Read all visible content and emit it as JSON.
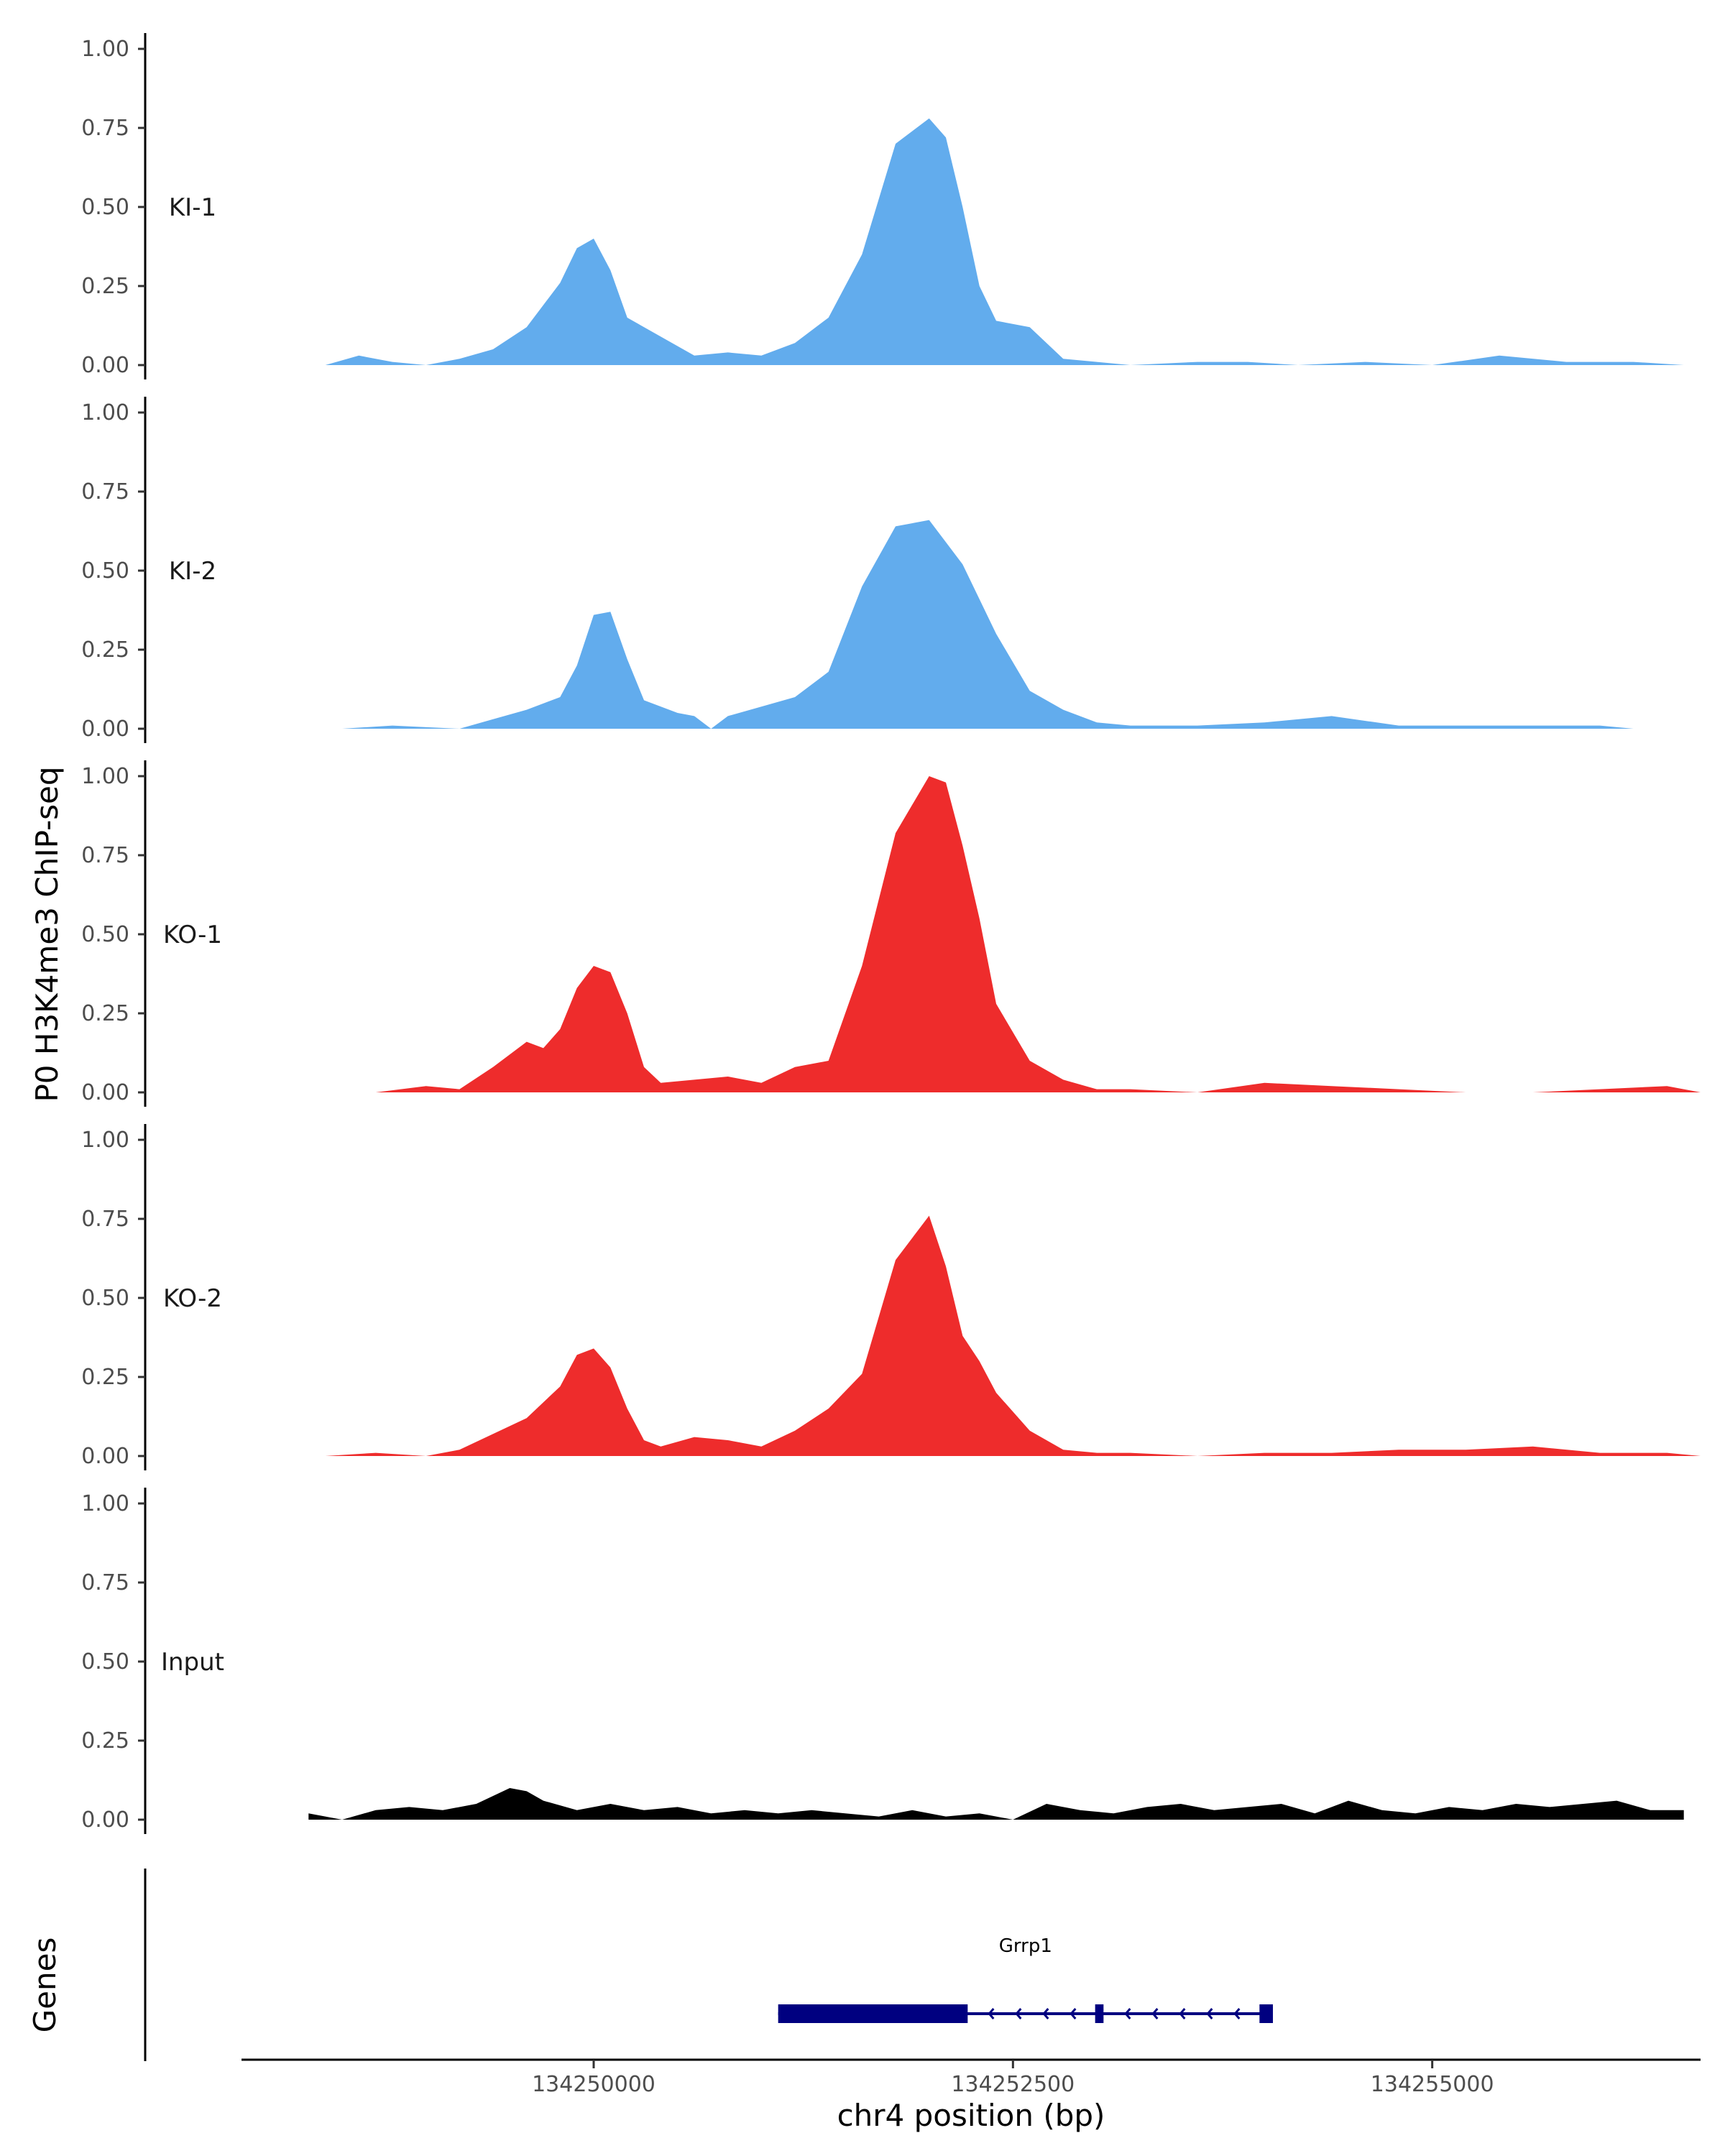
{
  "chart_data": {
    "type": "area",
    "ylabel": "P0 H3K4me3 ChIP-seq",
    "xlabel": "chr4 position (bp)",
    "genes_label": "Genes",
    "xlim": [
      134247900,
      134256600
    ],
    "x_ticks": [
      134250000,
      134252500,
      134255000
    ],
    "x_tick_labels": [
      "134250000",
      "134252500",
      "134255000"
    ],
    "ylim": [
      0,
      1
    ],
    "y_ticks": [
      0,
      0.25,
      0.5,
      0.75,
      1
    ],
    "y_tick_labels": [
      "0.00",
      "0.25",
      "0.50",
      "0.75",
      "1.00"
    ],
    "grid": false,
    "tracks": [
      {
        "name": "KI-1",
        "color": "#62aced",
        "x": [
          134248400,
          134248600,
          134248800,
          134249000,
          134249200,
          134249400,
          134249600,
          134249800,
          134249900,
          134250000,
          134250100,
          134250200,
          134250400,
          134250600,
          134250800,
          134251000,
          134251200,
          134251400,
          134251600,
          134251800,
          134252000,
          134252100,
          134252200,
          134252300,
          134252400,
          134252600,
          134252800,
          134253000,
          134253200,
          134253600,
          134253900,
          134254200,
          134254600,
          134255000,
          134255400,
          134255800,
          134256200,
          134256500
        ],
        "y": [
          0,
          0.03,
          0.01,
          0,
          0.02,
          0.05,
          0.12,
          0.26,
          0.37,
          0.4,
          0.3,
          0.15,
          0.09,
          0.03,
          0.04,
          0.03,
          0.07,
          0.15,
          0.35,
          0.7,
          0.78,
          0.72,
          0.5,
          0.25,
          0.14,
          0.12,
          0.02,
          0.01,
          0,
          0.01,
          0.01,
          0,
          0.01,
          0,
          0.03,
          0.01,
          0.01,
          0
        ]
      },
      {
        "name": "KI-2",
        "color": "#62aced",
        "x": [
          134248500,
          134248800,
          134249200,
          134249400,
          134249600,
          134249800,
          134249900,
          134250000,
          134250100,
          134250200,
          134250300,
          134250500,
          134250600,
          134250700,
          134250800,
          134251000,
          134251200,
          134251400,
          134251600,
          134251800,
          134252000,
          134252200,
          134252400,
          134252600,
          134252800,
          134253000,
          134253200,
          134253600,
          134254000,
          134254400,
          134254800,
          134255200,
          134255600,
          134256000,
          134256200
        ],
        "y": [
          0,
          0.01,
          0,
          0.03,
          0.06,
          0.1,
          0.2,
          0.36,
          0.37,
          0.22,
          0.09,
          0.05,
          0.04,
          0,
          0.04,
          0.07,
          0.1,
          0.18,
          0.45,
          0.64,
          0.66,
          0.52,
          0.3,
          0.12,
          0.06,
          0.02,
          0.01,
          0.01,
          0.02,
          0.04,
          0.01,
          0.01,
          0.01,
          0.01,
          0
        ]
      },
      {
        "name": "KO-1",
        "color": "#ee2c2c",
        "x": [
          134248700,
          134249000,
          134249200,
          134249400,
          134249600,
          134249700,
          134249800,
          134249900,
          134250000,
          134250100,
          134250200,
          134250300,
          134250400,
          134250600,
          134250800,
          134251000,
          134251200,
          134251400,
          134251600,
          134251800,
          134252000,
          134252100,
          134252200,
          134252300,
          134252400,
          134252600,
          134252800,
          134253000,
          134253200,
          134253600,
          134254000,
          134254400,
          134254800,
          134255200,
          134255600,
          134256000,
          134256400,
          134256600
        ],
        "y": [
          0,
          0.02,
          0.01,
          0.08,
          0.16,
          0.14,
          0.2,
          0.33,
          0.4,
          0.38,
          0.25,
          0.08,
          0.03,
          0.04,
          0.05,
          0.03,
          0.08,
          0.1,
          0.4,
          0.82,
          1.0,
          0.98,
          0.78,
          0.55,
          0.28,
          0.1,
          0.04,
          0.01,
          0.01,
          0,
          0.03,
          0.02,
          0.01,
          0,
          0,
          0.01,
          0.02,
          0
        ]
      },
      {
        "name": "KO-2",
        "color": "#ee2c2c",
        "x": [
          134248400,
          134248700,
          134249000,
          134249200,
          134249400,
          134249600,
          134249800,
          134249900,
          134250000,
          134250100,
          134250200,
          134250300,
          134250400,
          134250600,
          134250800,
          134251000,
          134251200,
          134251400,
          134251600,
          134251800,
          134252000,
          134252100,
          134252200,
          134252300,
          134252400,
          134252600,
          134252800,
          134253000,
          134253200,
          134253600,
          134254000,
          134254400,
          134254800,
          134255200,
          134255600,
          134256000,
          134256400,
          134256600
        ],
        "y": [
          0,
          0.01,
          0,
          0.02,
          0.07,
          0.12,
          0.22,
          0.32,
          0.34,
          0.28,
          0.15,
          0.05,
          0.03,
          0.06,
          0.05,
          0.03,
          0.08,
          0.15,
          0.26,
          0.62,
          0.76,
          0.6,
          0.38,
          0.3,
          0.2,
          0.08,
          0.02,
          0.01,
          0.01,
          0,
          0.01,
          0.01,
          0.02,
          0.02,
          0.03,
          0.01,
          0.01,
          0
        ]
      },
      {
        "name": "Input",
        "color": "#000000",
        "x": [
          134248300,
          134248500,
          134248700,
          134248900,
          134249100,
          134249300,
          134249500,
          134249600,
          134249700,
          134249900,
          134250100,
          134250300,
          134250500,
          134250700,
          134250900,
          134251100,
          134251300,
          134251500,
          134251700,
          134251900,
          134252100,
          134252300,
          134252500,
          134252700,
          134252900,
          134253100,
          134253300,
          134253500,
          134253700,
          134253900,
          134254100,
          134254300,
          134254500,
          134254700,
          134254900,
          134255100,
          134255300,
          134255500,
          134255700,
          134255900,
          134256100,
          134256300,
          134256500
        ],
        "y": [
          0.02,
          0,
          0.03,
          0.04,
          0.03,
          0.05,
          0.1,
          0.09,
          0.06,
          0.03,
          0.05,
          0.03,
          0.04,
          0.02,
          0.03,
          0.02,
          0.03,
          0.02,
          0.01,
          0.03,
          0.01,
          0.02,
          0,
          0.05,
          0.03,
          0.02,
          0.04,
          0.05,
          0.03,
          0.04,
          0.05,
          0.02,
          0.06,
          0.03,
          0.02,
          0.04,
          0.03,
          0.05,
          0.04,
          0.05,
          0.06,
          0.03,
          0.03
        ]
      }
    ],
    "gene": {
      "name": "Grrp1",
      "color": "#000080",
      "start": 134251100,
      "end": 134254050,
      "thick": [
        [
          134251100,
          134252230
        ]
      ],
      "exons": [
        [
          134252990,
          134253040
        ],
        [
          134253970,
          134254050
        ]
      ],
      "strand": "-"
    }
  }
}
